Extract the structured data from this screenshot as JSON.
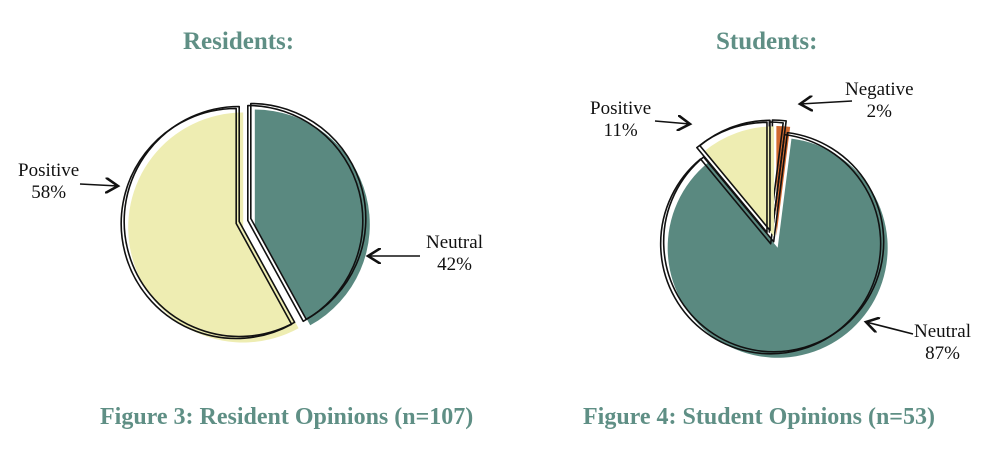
{
  "chart_data": [
    {
      "type": "pie",
      "title": "Residents:",
      "caption": "Figure 3: Resident Opinions (n=107)",
      "slices": [
        {
          "label": "Neutral",
          "value": 42,
          "text": "42%",
          "color": "#5a8980"
        },
        {
          "label": "Positive",
          "value": 58,
          "text": "58%",
          "color": "#eeedb2"
        }
      ]
    },
    {
      "type": "pie",
      "title": "Students:",
      "caption": "Figure 4: Student Opinions (n=53)",
      "slices": [
        {
          "label": "Negative",
          "value": 2,
          "text": "2%",
          "color": "#d0692f"
        },
        {
          "label": "Neutral",
          "value": 87,
          "text": "87%",
          "color": "#5a8980"
        },
        {
          "label": "Positive",
          "value": 11,
          "text": "11%",
          "color": "#eeedb2"
        }
      ]
    }
  ]
}
